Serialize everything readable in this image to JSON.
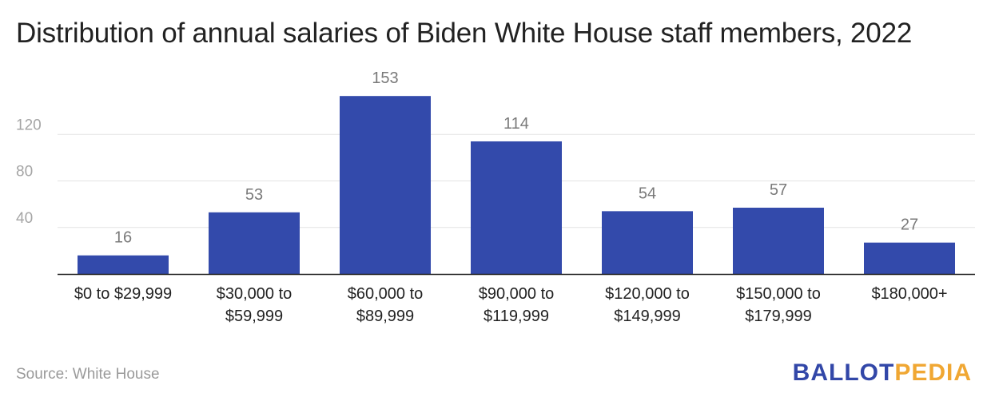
{
  "chart_data": {
    "type": "bar",
    "title": "Distribution of annual salaries of Biden White House staff members, 2022",
    "categories": [
      [
        "$0 to $29,999"
      ],
      [
        "$30,000 to",
        "$59,999"
      ],
      [
        "$60,000 to",
        "$89,999"
      ],
      [
        "$90,000 to",
        "$119,999"
      ],
      [
        "$120,000 to",
        "$149,999"
      ],
      [
        "$150,000 to",
        "$179,999"
      ],
      [
        "$180,000+"
      ]
    ],
    "values": [
      16,
      53,
      153,
      114,
      54,
      57,
      27
    ],
    "data_labels": [
      "16",
      "53",
      "153",
      "114",
      "54",
      "57",
      "27"
    ],
    "yticks": [
      40,
      80,
      120
    ],
    "ylim": [
      0,
      160
    ],
    "xlabel": "",
    "ylabel": "",
    "grid": true,
    "bar_color": "#334aab"
  },
  "footer": {
    "source": "Source: White House",
    "logo_part1": "BALLOT",
    "logo_part2": "PEDIA"
  }
}
